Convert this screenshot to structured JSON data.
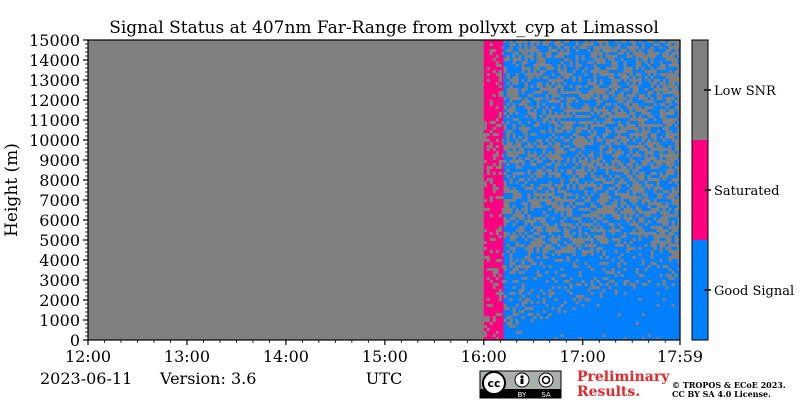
{
  "chart_data": {
    "type": "heatmap",
    "title": "Signal Status at 407nm Far-Range from pollyxt_cyp at Limassol",
    "ylabel": "Height (m)",
    "xlabel": "UTC",
    "x_ticks": [
      "12:00",
      "13:00",
      "14:00",
      "15:00",
      "16:00",
      "17:00",
      "17:59"
    ],
    "y_ticks": [
      "0",
      "1000",
      "2000",
      "3000",
      "4000",
      "5000",
      "6000",
      "7000",
      "8000",
      "9000",
      "10000",
      "11000",
      "12000",
      "13000",
      "14000",
      "15000"
    ],
    "xlim_hours": [
      12.0,
      17.983
    ],
    "ylim": [
      0,
      15000
    ],
    "colorbar": {
      "labels": [
        "Good Signal",
        "Saturated",
        "Low SNR"
      ],
      "colors": [
        "#0080ff",
        "#ff0080",
        "#808080"
      ]
    },
    "segments": [
      {
        "from_utc": "12:00",
        "to_utc": "16:00",
        "status": "Low SNR"
      },
      {
        "from_utc": "16:00",
        "to_utc": "16:12",
        "status": "Saturated (speckled with Low SNR)"
      },
      {
        "from_utc": "16:12",
        "to_utc": "17:59",
        "status": "Good Signal mixed with Low SNR; mostly Good Signal below ~3000 m"
      }
    ]
  },
  "footer": {
    "date": "2023-06-11",
    "version": "Version: 3.6",
    "utc_label": "UTC",
    "preliminary_line1": "Preliminary",
    "preliminary_line2": "Results.",
    "copyright_line1": "© TROPOS & ECoE 2023.",
    "copyright_line2": "CC BY SA 4.0 License."
  },
  "license_badge": {
    "cc": "cc",
    "by": "BY",
    "sa": "SA"
  }
}
